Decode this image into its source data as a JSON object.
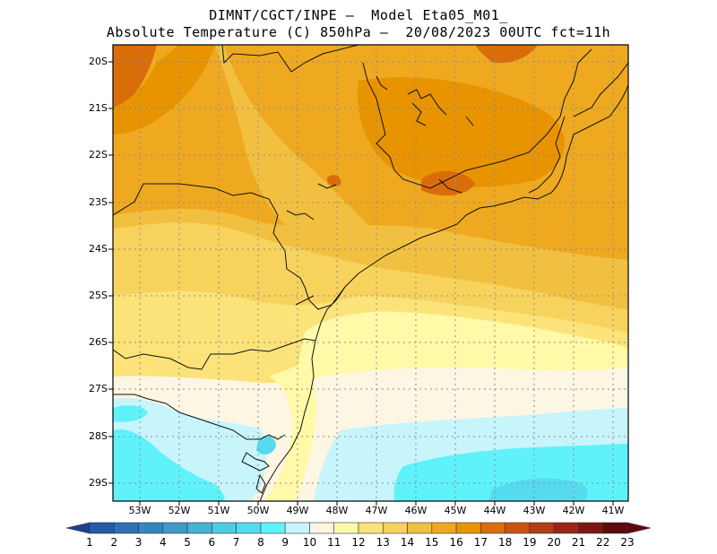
{
  "header": {
    "line1": "DIMNT/CGCT/INPE –  Model Eta05_M01_",
    "line2": "Absolute Temperature (C) 850hPa –  20/08/2023 00UTC fct=11h"
  },
  "axes": {
    "lat_labels": [
      "20S",
      "21S",
      "22S",
      "23S",
      "24S",
      "25S",
      "26S",
      "27S",
      "28S",
      "29S"
    ],
    "lon_labels": [
      "53W",
      "52W",
      "51W",
      "50W",
      "49W",
      "48W",
      "47W",
      "46W",
      "45W",
      "44W",
      "43W",
      "42W",
      "41W"
    ]
  },
  "colorbar": {
    "labels": [
      "1",
      "2",
      "3",
      "4",
      "5",
      "6",
      "7",
      "8",
      "9",
      "10",
      "11",
      "12",
      "13",
      "14",
      "15",
      "16",
      "17",
      "18",
      "19",
      "20",
      "21",
      "22",
      "23"
    ],
    "colors": [
      "#1f3f8f",
      "#255aa6",
      "#2d72b6",
      "#3586c0",
      "#3c9bc9",
      "#44b3d6",
      "#4ccbe2",
      "#56dbee",
      "#5ff2fb",
      "#c8f5fb",
      "#fdf6e3",
      "#fff9a8",
      "#fbe37a",
      "#f7d35e",
      "#f2c041",
      "#eea920",
      "#e89300",
      "#d96d0a",
      "#c95510",
      "#b43c13",
      "#9a2615",
      "#7e1612",
      "#5c0a0f"
    ]
  }
}
